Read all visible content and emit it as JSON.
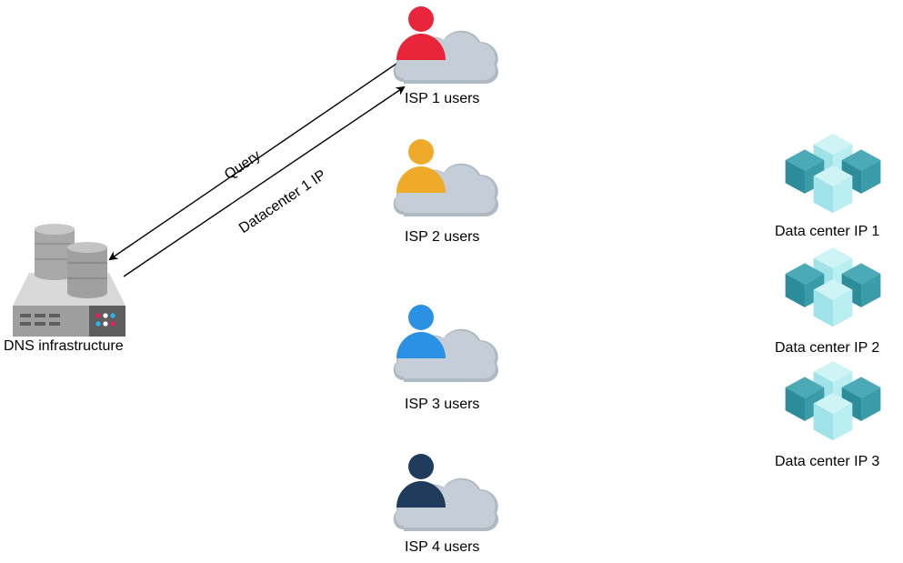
{
  "dns": {
    "label": "DNS infrastructure"
  },
  "isps": [
    {
      "label": "ISP 1 users",
      "color": "#E8253A"
    },
    {
      "label": "ISP 2 users",
      "color": "#F0AA2A"
    },
    {
      "label": "ISP 3 users",
      "color": "#2A91E4"
    },
    {
      "label": "ISP 4 users",
      "color": "#1F3C5C"
    }
  ],
  "datacenters": [
    {
      "label": "Data center IP 1"
    },
    {
      "label": "Data center IP 2"
    },
    {
      "label": "Data center IP 3"
    }
  ],
  "arrows": {
    "query": "Query",
    "response": "Datacenter 1 IP"
  },
  "colors": {
    "cloud": "#C5CED6",
    "cloud_shadow": "#AEB9C2",
    "cube_top": "#B9EEF2",
    "cube_dark": "#2D8C9A",
    "cube_mid": "#4BAAB6"
  }
}
